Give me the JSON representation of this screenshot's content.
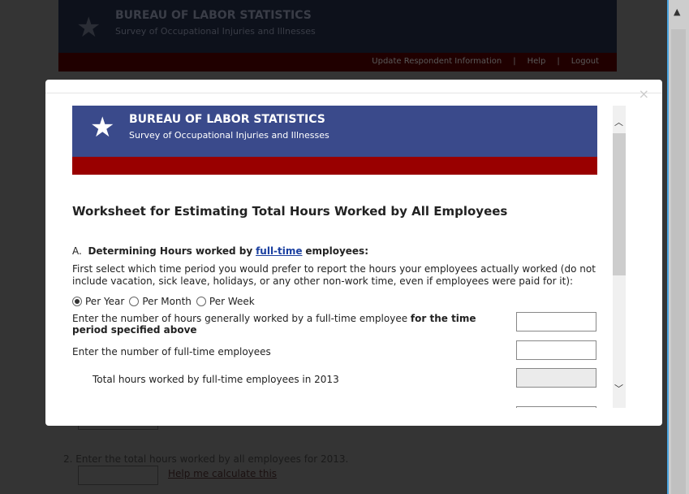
{
  "background_page": {
    "title": "BUREAU OF LABOR STATISTICS",
    "subtitle": "Survey of Occupational Injuries and Illnesses",
    "nav": [
      "Update Respondent Information",
      "Help",
      "Logout"
    ],
    "question_2": "2.  Enter the total hours worked by all employees for 2013.",
    "help_link": "Help me calculate this"
  },
  "modal": {
    "close": "×",
    "banner": {
      "title": "BUREAU OF LABOR STATISTICS",
      "subtitle": "Survey of Occupational Injuries and Illnesses"
    },
    "heading": "Worksheet for Estimating Total Hours Worked by All Employees",
    "section_a": {
      "prefix": "A.",
      "label_start": "Determining Hours worked by",
      "link": "full-time",
      "label_end": "employees:"
    },
    "instructions": "First select which time period you would prefer to report the hours your employees actually worked (do not include vacation, sick leave, holidays, or any other non-work time, even if employees were paid for it):",
    "periods": [
      {
        "label": "Per Year",
        "selected": true
      },
      {
        "label": "Per Month",
        "selected": false
      },
      {
        "label": "Per Week",
        "selected": false
      }
    ],
    "hours_label": "Enter the number of hours generally worked by a full-time employee ",
    "hours_label_bold": "for the time period specified above",
    "employees_label": "Enter the number of full-time employees",
    "total_label": "Total hours worked by full-time employees in 2013"
  },
  "colors": {
    "banner": "#3a4a8b",
    "red_bar": "#990000",
    "link": "#1a3fa0"
  }
}
